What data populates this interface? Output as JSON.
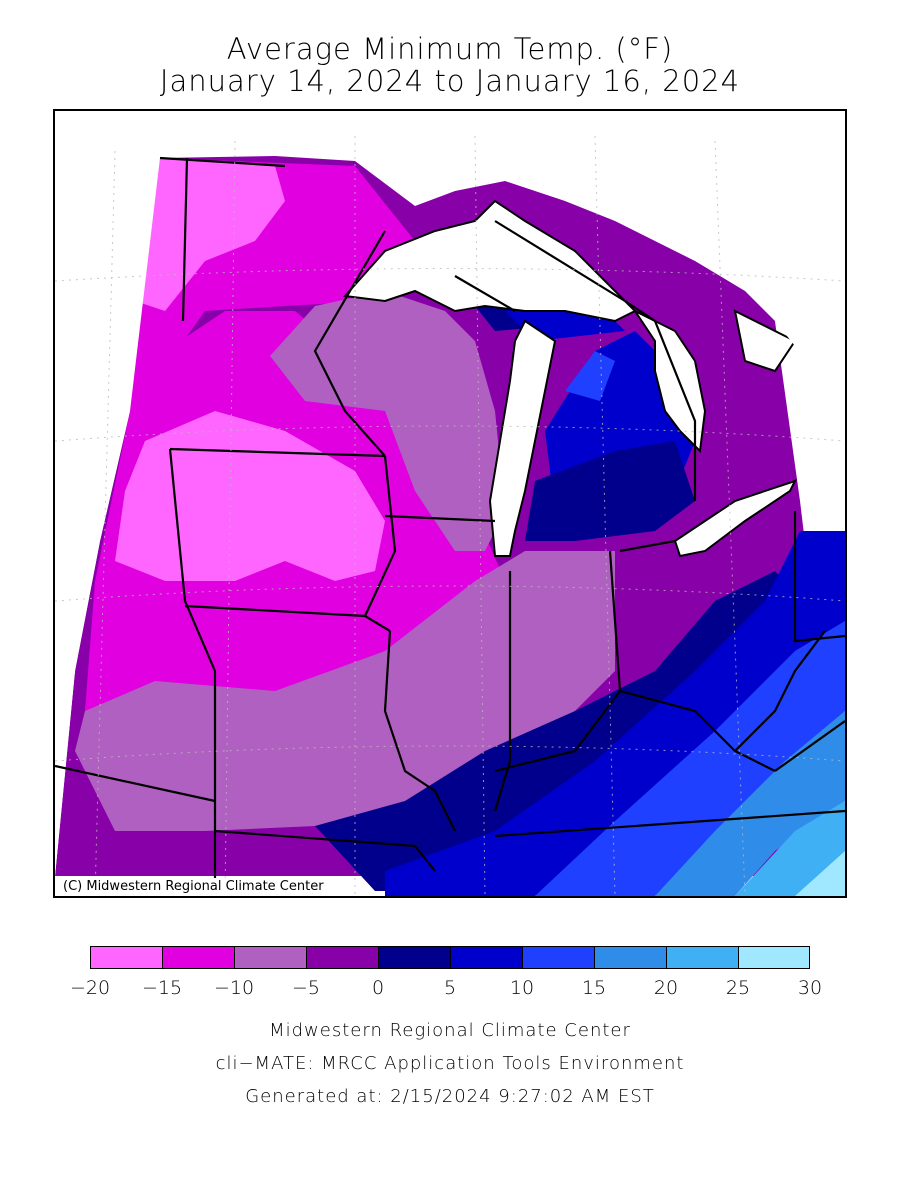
{
  "title": {
    "line1": "Average Minimum Temp. (°F)",
    "line2": "January 14, 2024 to January 16, 2024"
  },
  "map": {
    "credit": "(C) Midwestern Regional Climate Center",
    "region_temperature_bands_F": [
      {
        "region": "northern Minnesota",
        "range": "-20 to -15"
      },
      {
        "region": "southern Minnesota / northern Iowa",
        "range": "-20 to -15"
      },
      {
        "region": "Wisconsin / northern Illinois",
        "range": "-10 to -5"
      },
      {
        "region": "Missouri / central Illinois",
        "range": "-10 to -5"
      },
      {
        "region": "southern Illinois / Indiana",
        "range": "0 to 5"
      },
      {
        "region": "Michigan lower peninsula",
        "range": "5 to 15"
      },
      {
        "region": "Ohio / Kentucky",
        "range": "10 to 20"
      },
      {
        "region": "eastern Kentucky / West Virginia",
        "range": "20 to 30"
      }
    ]
  },
  "legend": {
    "colors": [
      "#ff66ff",
      "#e000e0",
      "#b060c0",
      "#8800a8",
      "#00008c",
      "#0000cc",
      "#2040ff",
      "#2f8ce8",
      "#40b0f4",
      "#a0e8ff"
    ],
    "ticks": [
      "−20",
      "−15",
      "−10",
      "−5",
      "0",
      "5",
      "10",
      "15",
      "20",
      "25",
      "30"
    ]
  },
  "footer": {
    "line1": "Midwestern Regional Climate Center",
    "line2": "cli−MATE: MRCC Application Tools Environment",
    "line3": "Generated at: 2/15/2024 9:27:02 AM EST"
  }
}
